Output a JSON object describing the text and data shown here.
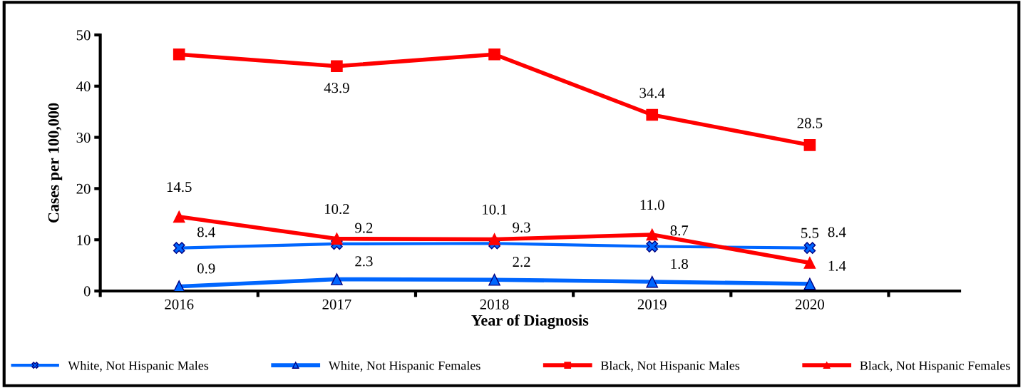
{
  "chart_data": {
    "type": "line",
    "xlabel": "Year of Diagnosis",
    "ylabel": "Cases per 100,000",
    "categories": [
      "2016",
      "2017",
      "2018",
      "2019",
      "2020"
    ],
    "ylim": [
      0,
      50
    ],
    "yticks": [
      0,
      10,
      20,
      30,
      40,
      50
    ],
    "grid": false,
    "legend": "bottom",
    "line_style": "solid",
    "series": [
      {
        "name": "White, Not Hispanic Males",
        "color": "#0066ff",
        "marker": "cross",
        "values": [
          8.4,
          9.2,
          9.3,
          8.7,
          8.4
        ],
        "value_labels": [
          "8.4",
          "9.2",
          "9.3",
          "8.7",
          "8.4"
        ]
      },
      {
        "name": "White, Not Hispanic Females",
        "color": "#0066ff",
        "marker": "triangle",
        "values": [
          0.9,
          2.3,
          2.2,
          1.8,
          1.4
        ],
        "value_labels": [
          "0.9",
          "2.3",
          "2.2",
          "1.8",
          "1.4"
        ]
      },
      {
        "name": "Black, Not Hispanic Males",
        "color": "#ff0000",
        "marker": "square",
        "values": [
          46.2,
          43.9,
          46.2,
          34.4,
          28.5
        ],
        "value_labels": [
          null,
          "43.9",
          null,
          "34.4",
          "28.5"
        ]
      },
      {
        "name": "Black, Not Hispanic Females",
        "color": "#ff0000",
        "marker": "triangle",
        "values": [
          14.5,
          10.2,
          10.1,
          11.0,
          5.5
        ],
        "value_labels": [
          "14.5",
          "10.2",
          "10.1",
          "11.0",
          "5.5"
        ]
      }
    ]
  }
}
